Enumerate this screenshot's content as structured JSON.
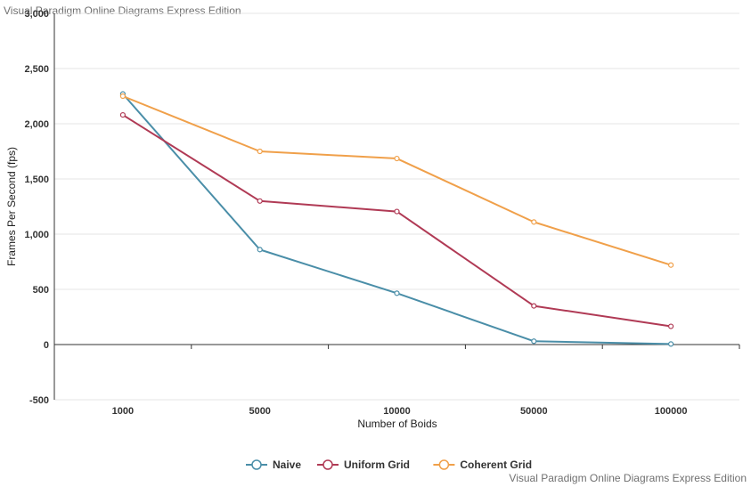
{
  "watermark_top": "Visual Paradigm Online Diagrams Express Edition",
  "watermark_bottom": "Visual Paradigm Online Diagrams Express Edition",
  "chart_data": {
    "type": "line",
    "title": "",
    "xlabel": "Number of Boids",
    "ylabel": "Frames Per Second (fps)",
    "categories": [
      "1000",
      "5000",
      "10000",
      "50000",
      "100000"
    ],
    "ylim": [
      -500,
      3000
    ],
    "yticks": [
      3000,
      2500,
      2000,
      1500,
      1000,
      500,
      0,
      -500
    ],
    "ytick_labels": [
      "3,000",
      "2,500",
      "2,000",
      "1,500",
      "1,000",
      "500",
      "0",
      "-500"
    ],
    "grid": true,
    "legend": "bottom-center",
    "series": [
      {
        "name": "Naive",
        "color": "#4a8ea8",
        "values": [
          2270,
          860,
          465,
          30,
          5
        ]
      },
      {
        "name": "Uniform Grid",
        "color": "#b03a55",
        "values": [
          2080,
          1300,
          1205,
          350,
          165
        ]
      },
      {
        "name": "Coherent Grid",
        "color": "#f0a04a",
        "values": [
          2250,
          1750,
          1685,
          1110,
          720
        ]
      }
    ]
  }
}
